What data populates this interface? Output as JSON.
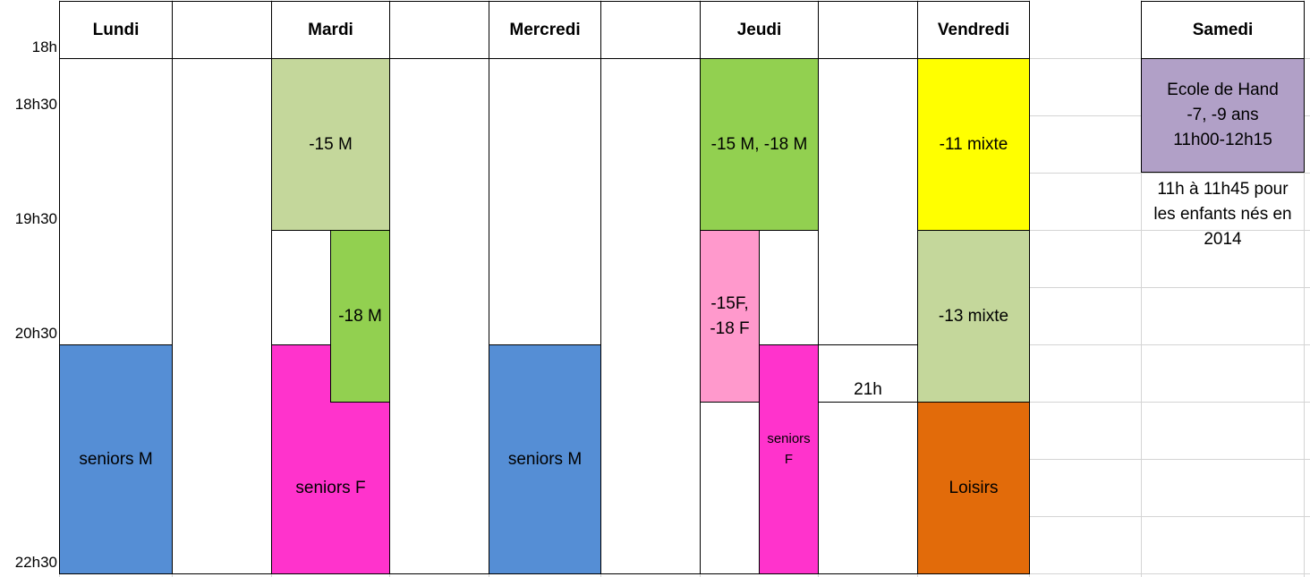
{
  "times": [
    "18h",
    "18h30",
    "19h30",
    "20h30",
    "22h30"
  ],
  "days": [
    "Lundi",
    "Mardi",
    "Mercredi",
    "Jeudi",
    "Vendredi",
    "Samedi"
  ],
  "sessions": {
    "lundi_seniors": "seniors M",
    "mardi_15": "-15 M",
    "mardi_18": "-18 M",
    "mardi_seniors": "seniors F",
    "mercredi_seniors": "seniors M",
    "jeudi_15_18": "-15 M, -18 M",
    "jeudi_15f_18f": "-15F,\n-18 F",
    "jeudi_seniors": "seniors\nF",
    "jeudi_21h": "21h",
    "vendredi_11": "-11 mixte",
    "vendredi_13": "-13 mixte",
    "vendredi_loisirs": "Loisirs",
    "samedi_ecole": "Ecole de Hand\n-7, -9 ans\n11h00-12h15",
    "samedi_note": "11h à 11h45 pour\nles enfants nés en\n2014"
  },
  "colors": {
    "seniors_m": "#558ed5",
    "seniors_f": "#ff33cc",
    "light_green": "#c4d79b",
    "green": "#92d050",
    "yellow": "#ffff00",
    "pink": "#ff99cc",
    "orange": "#e26b0a",
    "purple": "#b1a0c7"
  }
}
